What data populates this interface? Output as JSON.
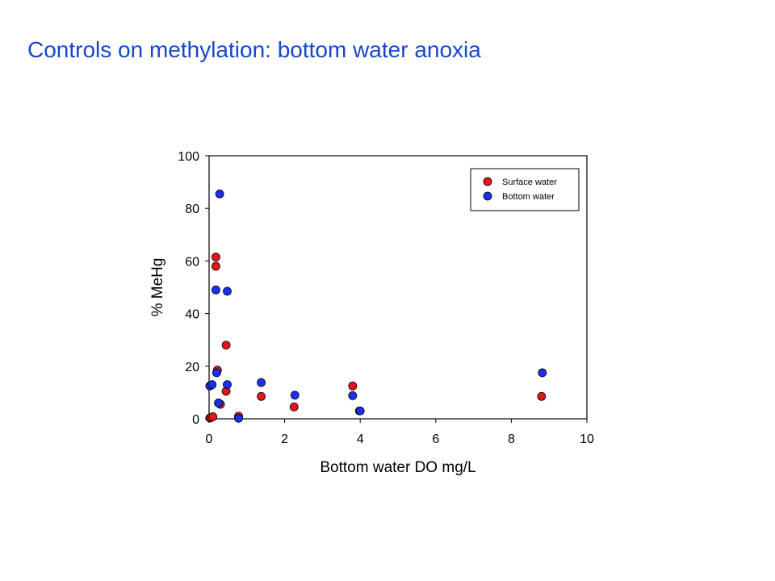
{
  "slide": {
    "title": "Controls on methylation: bottom water anoxia"
  },
  "chart_data": {
    "type": "scatter",
    "title": "",
    "xlabel": "Bottom water DO mg/L",
    "ylabel": "% MeHg",
    "xlim": [
      0,
      10
    ],
    "ylim": [
      0,
      100
    ],
    "x_ticks": [
      0,
      2,
      4,
      6,
      8,
      10
    ],
    "y_ticks": [
      0,
      20,
      40,
      60,
      80,
      100
    ],
    "grid": false,
    "legend_position": "top-right",
    "series": [
      {
        "name": "Surface water",
        "color": "#e8141c",
        "points": [
          {
            "x": 0.02,
            "y": 0.3
          },
          {
            "x": 0.05,
            "y": 0.5
          },
          {
            "x": 0.1,
            "y": 0.8
          },
          {
            "x": 0.18,
            "y": 61.5
          },
          {
            "x": 0.18,
            "y": 58.0
          },
          {
            "x": 0.22,
            "y": 18.5
          },
          {
            "x": 0.25,
            "y": 6.0
          },
          {
            "x": 0.3,
            "y": 5.5
          },
          {
            "x": 0.45,
            "y": 28.0
          },
          {
            "x": 0.45,
            "y": 10.5
          },
          {
            "x": 0.78,
            "y": 1.0
          },
          {
            "x": 1.38,
            "y": 8.5
          },
          {
            "x": 2.25,
            "y": 4.5
          },
          {
            "x": 3.8,
            "y": 12.5
          },
          {
            "x": 3.98,
            "y": 3.0
          },
          {
            "x": 8.8,
            "y": 8.5
          }
        ]
      },
      {
        "name": "Bottom water",
        "color": "#1a2ff0",
        "points": [
          {
            "x": 0.02,
            "y": 12.5
          },
          {
            "x": 0.08,
            "y": 13.0
          },
          {
            "x": 0.18,
            "y": 49.0
          },
          {
            "x": 0.2,
            "y": 17.5
          },
          {
            "x": 0.25,
            "y": 6.0
          },
          {
            "x": 0.28,
            "y": 85.5
          },
          {
            "x": 0.48,
            "y": 48.5
          },
          {
            "x": 0.48,
            "y": 13.0
          },
          {
            "x": 0.78,
            "y": 0.2
          },
          {
            "x": 1.38,
            "y": 13.8
          },
          {
            "x": 2.27,
            "y": 9.0
          },
          {
            "x": 3.8,
            "y": 8.8
          },
          {
            "x": 4.0,
            "y": 3.0
          },
          {
            "x": 8.82,
            "y": 17.5
          }
        ]
      }
    ]
  }
}
